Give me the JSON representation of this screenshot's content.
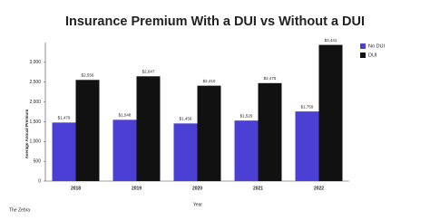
{
  "chart_data": {
    "type": "bar",
    "title": "Insurance Premium With a DUI vs Without a DUI",
    "x_label": "Year",
    "y_label": "Average Annual Premium",
    "categories": [
      "2018",
      "2019",
      "2020",
      "2021",
      "2022"
    ],
    "series": [
      {
        "name": "No DUI",
        "color": "#4b3fd4",
        "values": [
          1479,
          1548,
          1456,
          1529,
          1759
        ],
        "value_labels": [
          "$1,479",
          "$1,548",
          "$1,456",
          "$1,529",
          "$1,759"
        ]
      },
      {
        "name": "DUI",
        "color": "#111111",
        "values": [
          2556,
          2647,
          2410,
          2475,
          3441
        ],
        "value_labels": [
          "$2,556",
          "$2,647",
          "$2,410",
          "$2,475",
          "$3,441"
        ]
      }
    ],
    "ylim": [
      0,
      3500
    ],
    "yticks": [
      0,
      500,
      {
        "value": 1000,
        "label": "1,000"
      },
      {
        "value": 1500,
        "label": "1,500"
      },
      {
        "value": 2000,
        "label": "2,000"
      },
      {
        "value": 2500,
        "label": "2,500"
      },
      {
        "value": 3000,
        "label": "3,000"
      }
    ],
    "grid": false,
    "legend": "upper right"
  },
  "footer": "The Zebra"
}
